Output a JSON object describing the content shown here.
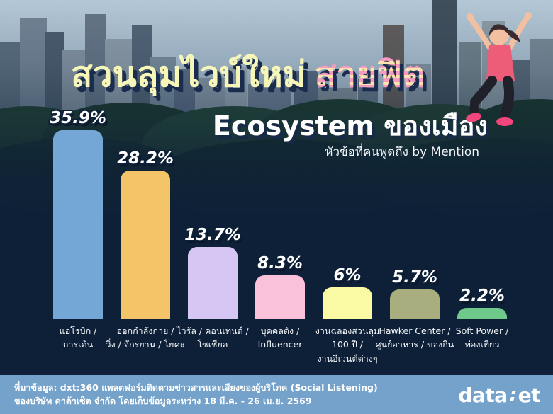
{
  "header": {
    "title_part1": "สวนลุมไวบ์ใหม่",
    "title_part2": "สายฟิต",
    "subtitle": "Ecosystem ของเมือง",
    "caption": "หัวข้อที่คนพูดถึง by Mention"
  },
  "chart_data": {
    "type": "bar",
    "title": "สวนลุมไวบ์ใหม่ สายฟิต Ecosystem ของเมือง",
    "subtitle": "หัวข้อที่คนพูดถึง by Mention",
    "unit": "%",
    "categories": [
      "แอโรบิก /\nการเต้น",
      "ออกกำลังกาย /\nวิ่ง / จักรยาน / โยคะ",
      "ไวรัล / คอนเทนต์ /\nโซเชียล",
      "บุคคลดัง /\nInfluencer",
      "งานฉลองสวนลุม\n100 ปี /\nงานอีเวนต์ต่างๆ",
      "Hawker Center /\nศูนย์อาหาร / ของกิน",
      "Soft Power /\nท่องเที่ยว"
    ],
    "values": [
      35.9,
      28.2,
      13.7,
      8.3,
      6,
      5.7,
      2.2
    ],
    "value_labels": [
      "35.9%",
      "28.2%",
      "13.7%",
      "8.3%",
      "6%",
      "5.7%",
      "2.2%"
    ],
    "bar_colors": [
      "#74a7d6",
      "#f3c468",
      "#d5c6f3",
      "#fac2da",
      "#fafaa5",
      "#a9ae7e",
      "#6fc98b"
    ],
    "ylim": [
      0,
      40
    ],
    "grid": false,
    "legend": null
  },
  "footer": {
    "source_line1": "ที่มาข้อมูล: dxt:360 แพลตฟอร์มติดตามข่าวสารและเสียงของผู้บริโภค (Social Listening)",
    "source_line2": "ของบริษัท ดาต้าเซ็ต จำกัด โดยเก็บข้อมูลระหว่าง 18 มี.ค. - 26 เม.ย. 2569",
    "brand_prefix": "data",
    "brand_suffix": "et",
    "brand": "dataxet"
  },
  "colors": {
    "background_navy": "#0e2038",
    "footer_blue": "#74a2ca",
    "title_yellow": "#f7f6b9",
    "title_pink": "#f79cc0",
    "title_shadow": "#1b2d4f",
    "text_white": "#ffffff"
  }
}
